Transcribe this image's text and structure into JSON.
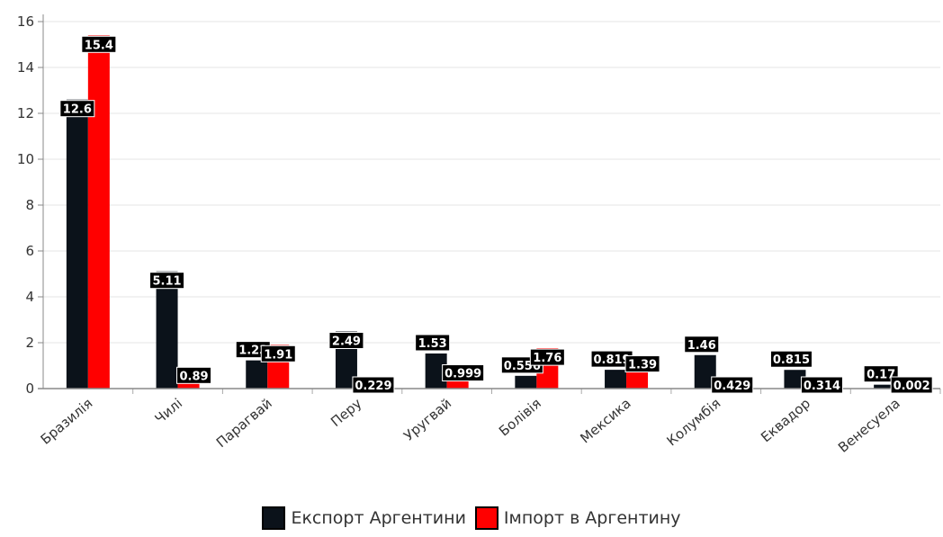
{
  "chart_data": {
    "type": "bar",
    "categories": [
      "Бразилія",
      "Чилі",
      "Парагвай",
      "Перу",
      "Уругвай",
      "Болівія",
      "Мексика",
      "Колумбія",
      "Еквадор",
      "Венесуела"
    ],
    "series": [
      {
        "name": "Експорт Аргентини",
        "color": "#0b121a",
        "values": [
          12.6,
          5.11,
          1.23,
          2.49,
          1.53,
          0.556,
          0.819,
          1.46,
          0.815,
          0.17
        ]
      },
      {
        "name": "Імпорт в Аргентину",
        "color": "#ff0000",
        "values": [
          15.4,
          0.89,
          1.91,
          0.229,
          0.999,
          1.76,
          1.39,
          0.429,
          0.314,
          0.002
        ]
      }
    ],
    "data_labels": [
      [
        "12.6",
        "5.11",
        "1.23",
        "2.49",
        "1.53",
        "0.556",
        "0.819",
        "1.46",
        "0.815",
        "0.17"
      ],
      [
        "15.4",
        "0.89",
        "1.91",
        "0.229",
        "0.999",
        "1.76",
        "1.39",
        "0.429",
        "0.314",
        "0.002"
      ]
    ],
    "y_ticks": [
      "0",
      "2",
      "4",
      "6",
      "8",
      "10",
      "12",
      "14",
      "16"
    ],
    "ylim": [
      0,
      16
    ],
    "title": "",
    "xlabel": "",
    "ylabel": "",
    "grid": true,
    "legend_position": "bottom-center"
  }
}
